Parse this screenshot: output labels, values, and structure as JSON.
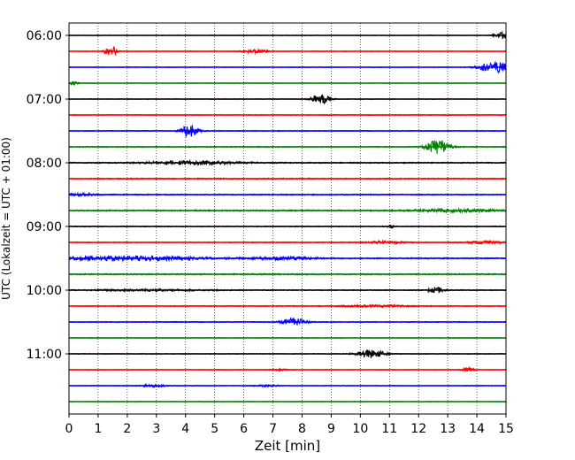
{
  "chart_data": {
    "type": "line",
    "title": "",
    "xlabel": "Zeit  [min]",
    "ylabel": "UTC (Lokalzeit = UTC + 01:00)",
    "xlim": [
      0,
      15
    ],
    "x_ticks": [
      0,
      1,
      2,
      3,
      4,
      5,
      6,
      7,
      8,
      9,
      10,
      11,
      12,
      13,
      14,
      15
    ],
    "grid": "vertical dotted lines at each minute",
    "y_tick_labels": [
      "06:00",
      "07:00",
      "08:00",
      "09:00",
      "10:00",
      "11:00"
    ],
    "trace_interval_min": 15,
    "colors": [
      "#000000",
      "#ff0000",
      "#0000ff",
      "#008000"
    ],
    "traces": [
      {
        "start": "06:00",
        "color": "#000000",
        "noise": 0.6,
        "events": [
          {
            "x": 14.85,
            "amp": 7,
            "dur": 0.25
          }
        ]
      },
      {
        "start": "06:15",
        "color": "#ff0000",
        "noise": 0.7,
        "events": [
          {
            "x": 1.45,
            "amp": 13,
            "dur": 0.2
          },
          {
            "x": 6.4,
            "amp": 4,
            "dur": 0.4
          }
        ]
      },
      {
        "start": "06:30",
        "color": "#0000ff",
        "noise": 0.7,
        "events": [
          {
            "x": 14.6,
            "amp": 13,
            "dur": 0.5
          }
        ]
      },
      {
        "start": "06:45",
        "color": "#008000",
        "noise": 0.6,
        "events": [
          {
            "x": 0.15,
            "amp": 4,
            "dur": 0.15
          }
        ]
      },
      {
        "start": "07:00",
        "color": "#000000",
        "noise": 0.6,
        "events": [
          {
            "x": 8.65,
            "amp": 12,
            "dur": 0.3
          }
        ]
      },
      {
        "start": "07:15",
        "color": "#ff0000",
        "noise": 0.9,
        "events": []
      },
      {
        "start": "07:30",
        "color": "#0000ff",
        "noise": 0.8,
        "events": [
          {
            "x": 4.15,
            "amp": 14,
            "dur": 0.3
          }
        ]
      },
      {
        "start": "07:45",
        "color": "#008000",
        "noise": 1.1,
        "events": [
          {
            "x": 12.65,
            "amp": 15,
            "dur": 0.4
          }
        ]
      },
      {
        "start": "08:00",
        "color": "#000000",
        "noise": 1.2,
        "events": [
          {
            "x": 4.2,
            "amp": 4,
            "dur": 1.6
          }
        ]
      },
      {
        "start": "08:15",
        "color": "#ff0000",
        "noise": 1.3,
        "events": []
      },
      {
        "start": "08:30",
        "color": "#0000ff",
        "noise": 1.2,
        "events": [
          {
            "x": 0.3,
            "amp": 3,
            "dur": 0.6
          }
        ]
      },
      {
        "start": "08:45",
        "color": "#008000",
        "noise": 1.5,
        "events": [
          {
            "x": 13.3,
            "amp": 3,
            "dur": 1.5
          }
        ]
      },
      {
        "start": "09:00",
        "color": "#000000",
        "noise": 1.0,
        "events": [
          {
            "x": 11.05,
            "amp": 3,
            "dur": 0.1
          }
        ]
      },
      {
        "start": "09:15",
        "color": "#ff0000",
        "noise": 1.0,
        "events": [
          {
            "x": 10.9,
            "amp": 3,
            "dur": 0.6
          },
          {
            "x": 14.3,
            "amp": 3,
            "dur": 0.6
          }
        ]
      },
      {
        "start": "09:30",
        "color": "#0000ff",
        "noise": 1.3,
        "events": [
          {
            "x": 2.0,
            "amp": 5,
            "dur": 2.5
          },
          {
            "x": 7.4,
            "amp": 3,
            "dur": 1.0
          }
        ]
      },
      {
        "start": "09:45",
        "color": "#008000",
        "noise": 1.4,
        "events": []
      },
      {
        "start": "10:00",
        "color": "#000000",
        "noise": 1.0,
        "events": [
          {
            "x": 12.6,
            "amp": 6,
            "dur": 0.3
          },
          {
            "x": 2.8,
            "amp": 2,
            "dur": 2.0
          }
        ]
      },
      {
        "start": "10:15",
        "color": "#ff0000",
        "noise": 1.0,
        "events": [
          {
            "x": 10.5,
            "amp": 2,
            "dur": 1.2
          }
        ]
      },
      {
        "start": "10:30",
        "color": "#0000ff",
        "noise": 0.9,
        "events": [
          {
            "x": 7.7,
            "amp": 9,
            "dur": 0.4
          }
        ]
      },
      {
        "start": "10:45",
        "color": "#008000",
        "noise": 0.7,
        "events": []
      },
      {
        "start": "11:00",
        "color": "#000000",
        "noise": 0.7,
        "events": [
          {
            "x": 10.35,
            "amp": 9,
            "dur": 0.5
          }
        ]
      },
      {
        "start": "11:15",
        "color": "#ff0000",
        "noise": 0.7,
        "events": [
          {
            "x": 13.7,
            "amp": 7,
            "dur": 0.2
          },
          {
            "x": 7.2,
            "amp": 2,
            "dur": 0.3
          }
        ]
      },
      {
        "start": "11:30",
        "color": "#0000ff",
        "noise": 0.7,
        "events": [
          {
            "x": 2.9,
            "amp": 3,
            "dur": 0.4
          },
          {
            "x": 6.8,
            "amp": 2,
            "dur": 0.4
          }
        ]
      },
      {
        "start": "11:45",
        "color": "#008000",
        "noise": 0.6,
        "events": []
      }
    ]
  }
}
